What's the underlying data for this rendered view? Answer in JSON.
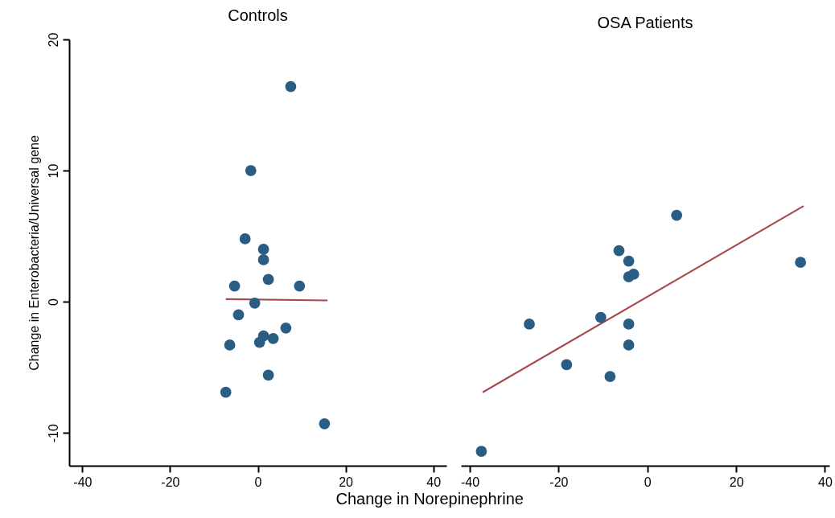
{
  "chart_data": [
    {
      "type": "scatter",
      "title": "Controls",
      "xlabel": "Change in Norepinephrine",
      "ylabel": "Change in Enterobacteria/Universal gene",
      "xlim": [
        -43,
        43
      ],
      "ylim": [
        -12.5,
        20
      ],
      "xticks": [
        -40,
        -20,
        0,
        20,
        40
      ],
      "yticks": [
        -10,
        0,
        10,
        20
      ],
      "grid": false,
      "series": [
        {
          "marker": "circle",
          "color": "#2a5d84",
          "x": [
            7.5,
            -1.6,
            -2.9,
            1.3,
            1.3,
            2.4,
            -5.3,
            9.5,
            -0.7,
            -4.4,
            6.4,
            1.3,
            3.5,
            0.4,
            -6.4,
            2.4,
            -7.3,
            15.2
          ],
          "values": [
            16.4,
            10.0,
            4.8,
            4.0,
            3.2,
            1.7,
            1.2,
            1.2,
            -0.1,
            -1.0,
            -2.0,
            -2.6,
            -2.8,
            -3.1,
            -3.3,
            -5.6,
            -6.9,
            -9.3
          ]
        },
        {
          "type": "line",
          "color": "#a94a4e",
          "x": [
            -7.3,
            15.9
          ],
          "values": [
            0.2,
            0.1
          ]
        }
      ]
    },
    {
      "type": "scatter",
      "title": "OSA Patients",
      "xlim": [
        -42,
        41
      ],
      "ylim": [
        -12.5,
        20
      ],
      "xticks": [
        -40,
        -20,
        0,
        20,
        40
      ],
      "yticks": [
        -10,
        0,
        10,
        20
      ],
      "tick_labels": "x",
      "grid": false,
      "series": [
        {
          "marker": "circle",
          "color": "#2a5d84",
          "x": [
            -6.4,
            -4.2,
            -4.2,
            -3.1,
            6.6,
            34.5,
            -10.5,
            -26.6,
            -4.2,
            -4.2,
            -18.2,
            -8.4,
            -37.4
          ],
          "values": [
            3.9,
            3.1,
            1.9,
            2.1,
            6.6,
            3.0,
            -1.2,
            -1.7,
            -1.7,
            -3.3,
            -4.8,
            -5.7,
            -11.4
          ]
        },
        {
          "type": "line",
          "color": "#a94a4e",
          "x": [
            -37.1,
            35.2
          ],
          "values": [
            -6.9,
            7.3
          ]
        }
      ]
    }
  ]
}
